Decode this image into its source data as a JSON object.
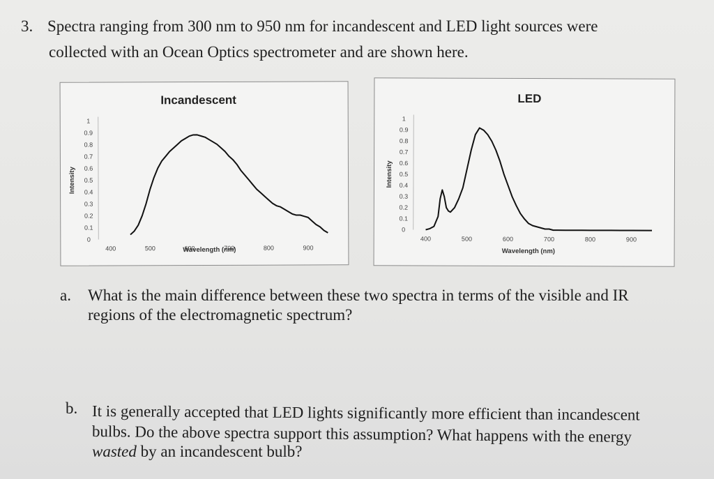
{
  "question": {
    "number": "3.",
    "line1": "Spectra ranging from 300 nm to 950 nm for incandescent and LED light sources were",
    "line2": "collected with an Ocean Optics spectrometer and are shown here."
  },
  "part_a": {
    "label": "a.",
    "line1": "What is the main difference between these two spectra in terms of the visible and IR",
    "line2": "regions of the electromagnetic spectrum?"
  },
  "part_b": {
    "label": "b.",
    "line1": "It is generally accepted that LED lights significantly more efficient than incandescent",
    "line2": "bulbs.  Do the above spectra support this assumption?  What happens with the energy",
    "line3_em": "wasted",
    "line3_rest": " by an incandescent bulb?"
  },
  "chart_data": [
    {
      "type": "line",
      "title": "Incandescent",
      "xlabel": "Wavelength (nm)",
      "ylabel": "Intensity",
      "xlim": [
        380,
        980
      ],
      "ylim": [
        0,
        1
      ],
      "x_ticks": [
        "400",
        "500",
        "600",
        "700",
        "800",
        "900"
      ],
      "y_ticks": [
        "0",
        "0.1",
        "0.2",
        "0.3",
        "0.4",
        "0.5",
        "0.6",
        "0.7",
        "0.8",
        "0.9",
        "1"
      ],
      "grid": false,
      "series": [
        {
          "color": "#111111",
          "x": [
            450,
            460,
            470,
            480,
            490,
            500,
            510,
            520,
            530,
            540,
            550,
            560,
            570,
            580,
            590,
            600,
            610,
            620,
            630,
            640,
            650,
            660,
            670,
            680,
            690,
            700,
            710,
            720,
            730,
            740,
            750,
            760,
            770,
            780,
            790,
            800,
            810,
            820,
            830,
            840,
            850,
            860,
            870,
            880,
            890,
            900,
            910,
            920,
            930,
            940,
            950
          ],
          "values": [
            0.04,
            0.07,
            0.12,
            0.2,
            0.3,
            0.42,
            0.52,
            0.6,
            0.66,
            0.7,
            0.74,
            0.77,
            0.8,
            0.83,
            0.85,
            0.87,
            0.88,
            0.88,
            0.87,
            0.86,
            0.84,
            0.82,
            0.8,
            0.77,
            0.74,
            0.7,
            0.67,
            0.63,
            0.58,
            0.54,
            0.5,
            0.46,
            0.42,
            0.39,
            0.36,
            0.33,
            0.3,
            0.28,
            0.27,
            0.25,
            0.23,
            0.21,
            0.2,
            0.2,
            0.19,
            0.18,
            0.15,
            0.12,
            0.1,
            0.07,
            0.05
          ]
        }
      ]
    },
    {
      "type": "line",
      "title": "LED",
      "xlabel": "Wavelength (nm)",
      "ylabel": "Intensity",
      "xlim": [
        380,
        980
      ],
      "ylim": [
        0,
        1
      ],
      "x_ticks": [
        "400",
        "500",
        "600",
        "700",
        "800",
        "900"
      ],
      "y_ticks": [
        "0",
        "0.1",
        "0.2",
        "0.3",
        "0.4",
        "0.5",
        "0.6",
        "0.7",
        "0.8",
        "0.9",
        "1"
      ],
      "grid": false,
      "series": [
        {
          "color": "#111111",
          "x": [
            400,
            410,
            420,
            430,
            435,
            440,
            445,
            450,
            455,
            460,
            470,
            480,
            490,
            500,
            510,
            520,
            530,
            540,
            550,
            560,
            570,
            580,
            590,
            600,
            610,
            620,
            630,
            640,
            650,
            660,
            670,
            680,
            690,
            700,
            710,
            720,
            740,
            760,
            780,
            800,
            850,
            900,
            950
          ],
          "values": [
            0.0,
            0.01,
            0.03,
            0.12,
            0.28,
            0.36,
            0.3,
            0.2,
            0.17,
            0.16,
            0.2,
            0.28,
            0.38,
            0.55,
            0.72,
            0.86,
            0.92,
            0.9,
            0.86,
            0.8,
            0.72,
            0.62,
            0.5,
            0.4,
            0.3,
            0.22,
            0.15,
            0.1,
            0.06,
            0.04,
            0.03,
            0.02,
            0.01,
            0.01,
            0.0,
            0.0,
            0.0,
            0.0,
            0.0,
            0.0,
            0.0,
            0.0,
            0.0
          ]
        }
      ]
    }
  ]
}
